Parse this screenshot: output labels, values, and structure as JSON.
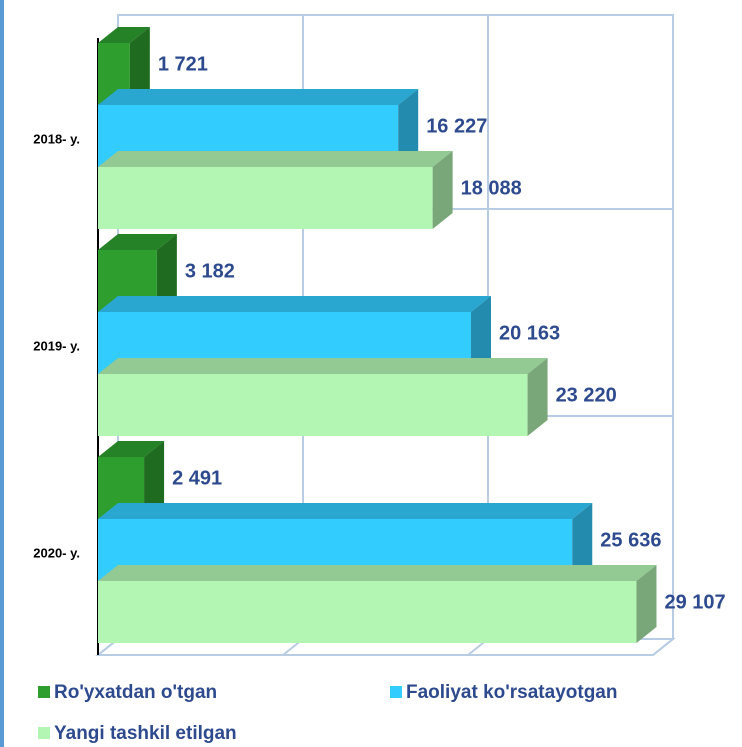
{
  "chart_data": {
    "type": "bar3d",
    "categories": [
      "2018- y.",
      "2019- y.",
      "2020- y."
    ],
    "series": [
      {
        "name": "Ro'yxatdan o'tgan",
        "color": "#2e9e2e",
        "values": [
          1721,
          3182,
          2491
        ],
        "value_labels": [
          "1 721",
          "3 182",
          "2 491"
        ]
      },
      {
        "name": "Faoliyat ko'rsatayotgan",
        "color": "#33ccff",
        "values": [
          16227,
          20163,
          25636
        ],
        "value_labels": [
          "16 227",
          "20 163",
          "25 636"
        ]
      },
      {
        "name": "Yangi tashkil etilgan",
        "color": "#b3f5b3",
        "values": [
          18088,
          23220,
          29107
        ],
        "value_labels": [
          "18 088",
          "23 220",
          "29 107"
        ]
      }
    ],
    "xlim": [
      0,
      30000
    ],
    "xticks": [
      0,
      10000,
      20000,
      30000
    ],
    "grid": true
  }
}
